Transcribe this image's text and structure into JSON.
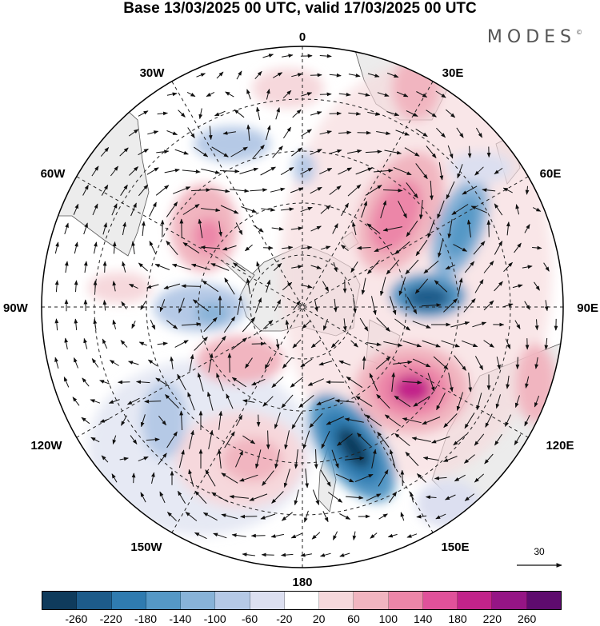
{
  "title": "Base 13/03/2025 00 UTC, valid 17/03/2025 00 UTC",
  "brand": "MODES",
  "brand_mark": "©",
  "map": {
    "projection": "south polar stereographic",
    "longitude_labels": {
      "top": "0",
      "bottom": "180",
      "left": "90W",
      "right": "90E",
      "upper_left": "30W",
      "upper_right": "30E",
      "mid_left_upper": "60W",
      "mid_right_upper": "60E",
      "mid_left_lower": "120W",
      "mid_right_lower": "120E",
      "lower_left": "150W",
      "lower_right": "150E"
    },
    "reference_vector_label": "30",
    "land_color": "#ececec",
    "coast_color": "#555555",
    "vector_color": "#111111"
  },
  "colorbar": {
    "colors": [
      "#0f3b5c",
      "#1d5b8a",
      "#2f7bb0",
      "#5598c6",
      "#88b3d8",
      "#b5c9e6",
      "#dcdff0",
      "#ffffff",
      "#f6d8dc",
      "#f1b5c0",
      "#ec86a8",
      "#e0519a",
      "#c2238a",
      "#951585",
      "#5e0b6e"
    ],
    "tick_labels": [
      "-260",
      "-220",
      "-180",
      "-140",
      "-100",
      "-60",
      "-20",
      "20",
      "60",
      "100",
      "140",
      "180",
      "220",
      "260"
    ]
  }
}
